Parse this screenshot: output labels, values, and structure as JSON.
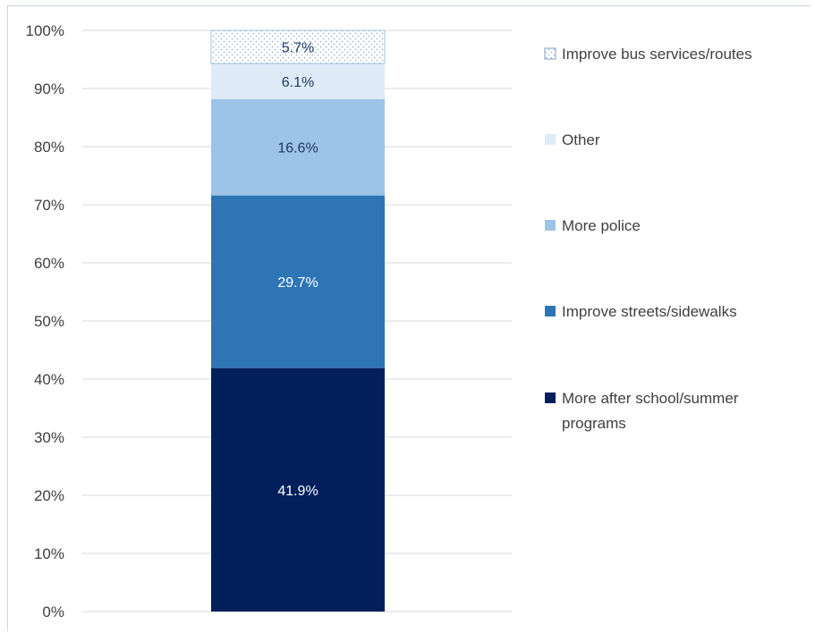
{
  "chart_data": {
    "type": "bar",
    "stacked": true,
    "categories": [
      ""
    ],
    "series": [
      {
        "name": "More after school/summer programs",
        "values": [
          41.9
        ],
        "color": "#001f5b",
        "label": "41.9%",
        "label_color": "#ffffff"
      },
      {
        "name": "Improve streets/sidewalks",
        "values": [
          29.7
        ],
        "color": "#2e75b6",
        "label": "29.7%",
        "label_color": "#ffffff"
      },
      {
        "name": "More police",
        "values": [
          16.6
        ],
        "color": "#9dc3e6",
        "label": "16.6%",
        "label_color": "#1f3864"
      },
      {
        "name": "Other",
        "values": [
          6.1
        ],
        "color": "#deebf7",
        "label": "6.1%",
        "label_color": "#1f3864"
      },
      {
        "name": "Improve bus services/routes",
        "values": [
          5.7
        ],
        "color": "#ffffff",
        "pattern": "dotted",
        "label": "5.7%",
        "label_color": "#1f3864"
      }
    ],
    "y_ticks": [
      "0%",
      "10%",
      "20%",
      "30%",
      "40%",
      "50%",
      "60%",
      "70%",
      "80%",
      "90%",
      "100%"
    ],
    "ylim": [
      0,
      100
    ],
    "grid": true,
    "legend_position": "right",
    "legend_order": [
      "Improve bus services/routes",
      "Other",
      "More police",
      "Improve streets/sidewalks",
      "More after school/summer programs"
    ],
    "title": "",
    "xlabel": "",
    "ylabel": ""
  }
}
